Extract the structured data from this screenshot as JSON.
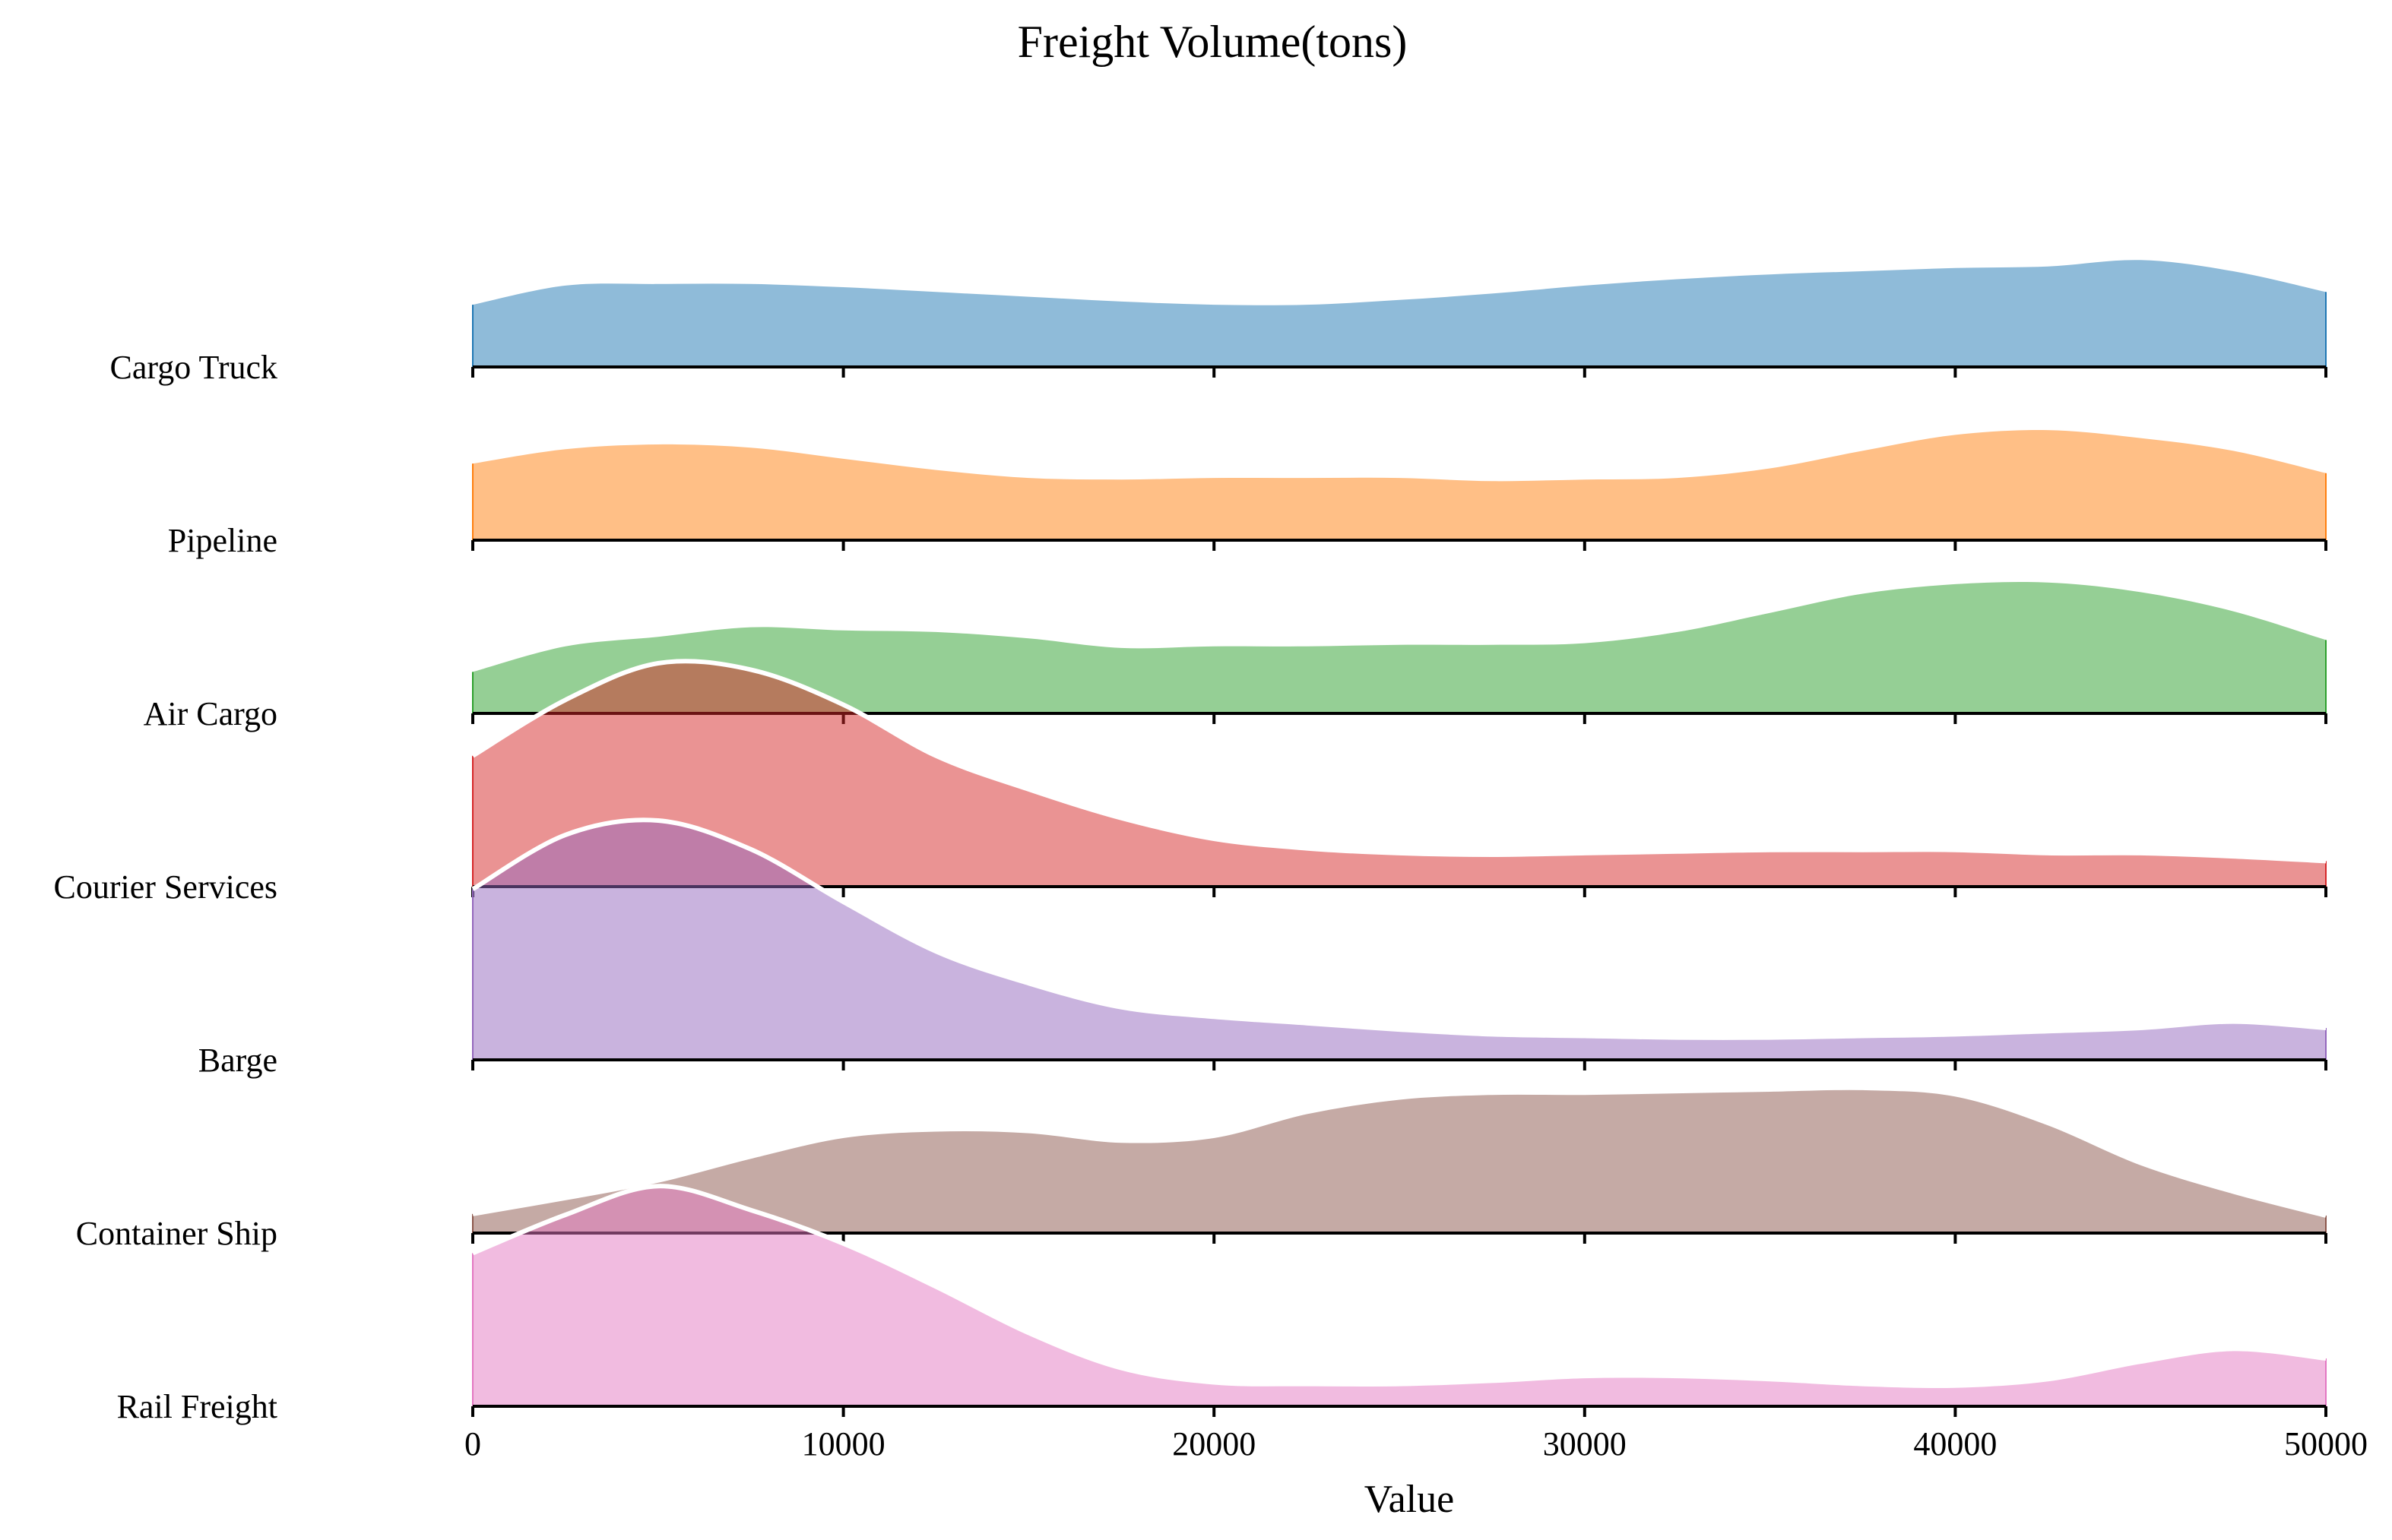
{
  "chart_data": {
    "type": "area",
    "subtype": "ridgeline",
    "title": "Freight Volume(tons)",
    "xlabel": "Value",
    "ylabel": "",
    "xlim": [
      0,
      50000
    ],
    "x_ticks": [
      0,
      10000,
      20000,
      30000,
      40000,
      50000
    ],
    "grid": false,
    "legend": "none",
    "x": [
      0,
      2500,
      5000,
      7500,
      10000,
      12500,
      15000,
      17500,
      20000,
      22500,
      25000,
      27500,
      30000,
      32500,
      35000,
      37500,
      40000,
      42500,
      45000,
      47500,
      50000
    ],
    "series": [
      {
        "name": "Cargo Truck",
        "color": "#1f77b4",
        "outline": false,
        "values": [
          0.39,
          0.51,
          0.52,
          0.52,
          0.5,
          0.47,
          0.44,
          0.41,
          0.39,
          0.39,
          0.42,
          0.46,
          0.51,
          0.55,
          0.58,
          0.6,
          0.62,
          0.63,
          0.67,
          0.6,
          0.47
        ]
      },
      {
        "name": "Pipeline",
        "color": "#ff7f0e",
        "outline": false,
        "values": [
          0.48,
          0.57,
          0.6,
          0.58,
          0.51,
          0.44,
          0.39,
          0.38,
          0.39,
          0.39,
          0.39,
          0.37,
          0.38,
          0.39,
          0.45,
          0.56,
          0.66,
          0.69,
          0.64,
          0.56,
          0.42
        ]
      },
      {
        "name": "Air Cargo",
        "color": "#2ca02c",
        "outline": false,
        "values": [
          0.26,
          0.42,
          0.48,
          0.54,
          0.52,
          0.51,
          0.47,
          0.41,
          0.42,
          0.42,
          0.43,
          0.43,
          0.44,
          0.51,
          0.63,
          0.75,
          0.81,
          0.82,
          0.76,
          0.64,
          0.46
        ]
      },
      {
        "name": "Courier Services",
        "color": "#d62728",
        "outline": true,
        "values": [
          0.82,
          1.17,
          1.4,
          1.36,
          1.14,
          0.82,
          0.61,
          0.43,
          0.3,
          0.24,
          0.21,
          0.2,
          0.21,
          0.22,
          0.23,
          0.23,
          0.23,
          0.21,
          0.21,
          0.19,
          0.16
        ]
      },
      {
        "name": "Barge",
        "color": "#9467bd",
        "outline": true,
        "values": [
          1.07,
          1.41,
          1.5,
          1.32,
          0.99,
          0.68,
          0.48,
          0.33,
          0.27,
          0.23,
          0.19,
          0.16,
          0.15,
          0.14,
          0.14,
          0.15,
          0.16,
          0.18,
          0.2,
          0.24,
          0.2
        ]
      },
      {
        "name": "Container Ship",
        "color": "#8c564b",
        "outline": true,
        "values": [
          0.12,
          0.22,
          0.33,
          0.48,
          0.61,
          0.65,
          0.64,
          0.58,
          0.61,
          0.76,
          0.85,
          0.88,
          0.88,
          0.89,
          0.9,
          0.91,
          0.87,
          0.69,
          0.44,
          0.26,
          0.11
        ]
      },
      {
        "name": "Rail Freight",
        "color": "#e377c2",
        "outline": true,
        "values": [
          0.96,
          1.2,
          1.38,
          1.23,
          1.02,
          0.75,
          0.46,
          0.24,
          0.15,
          0.14,
          0.14,
          0.16,
          0.19,
          0.19,
          0.17,
          0.14,
          0.13,
          0.17,
          0.28,
          0.36,
          0.3
        ]
      }
    ]
  }
}
